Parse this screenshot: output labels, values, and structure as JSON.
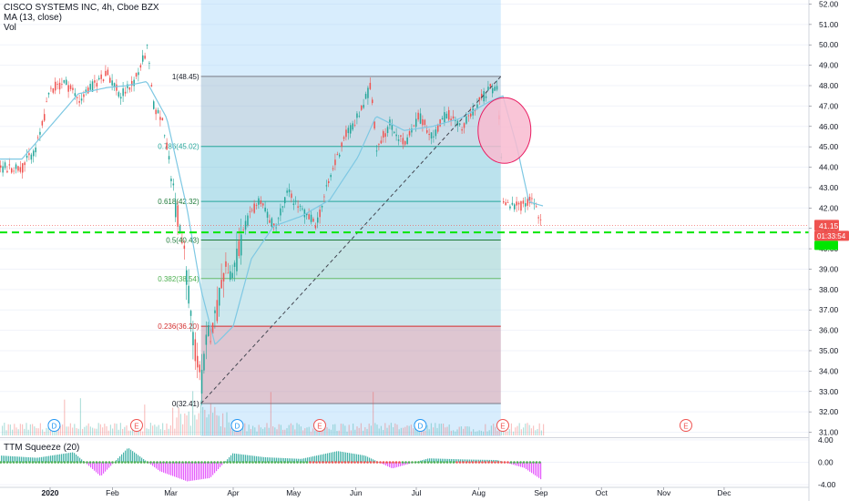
{
  "header": {
    "symbol": "CISCO SYSTEMS INC, 4h, Cboe BZX",
    "indicator_ma": "MA (13, close)",
    "indicator_vol": "Vol"
  },
  "oscillator": {
    "label": "TTM Squeeze (20)"
  },
  "colors": {
    "up": "#26a69a",
    "down": "#ef5350",
    "ma": "#7ec8e3",
    "fib_highlight_blue": "#90caf9",
    "dashed_support": "#00e600",
    "price_badge": "#ef5350",
    "squeeze_on": "#ef5350",
    "squeeze_off": "#4caf50",
    "momentum_up": "#26a69a",
    "momentum_down": "#e040fb",
    "circle_fill": "#f8bbd0"
  },
  "chart_data": {
    "type": "candlestick",
    "title": "CISCO SYSTEMS INC, 4h, Cboe BZX",
    "x_ticks": [
      "2020",
      "Feb",
      "Mar",
      "Apr",
      "May",
      "Jun",
      "Jul",
      "Aug",
      "Sep",
      "Oct",
      "Nov",
      "Dec"
    ],
    "y_ticks": [
      "52.00",
      "51.00",
      "50.00",
      "49.00",
      "48.00",
      "47.00",
      "46.00",
      "45.00",
      "44.00",
      "43.00",
      "42.00",
      "41.00",
      "40.00",
      "39.00",
      "38.00",
      "37.00",
      "36.00",
      "35.00",
      "34.00",
      "33.00",
      "32.00",
      "31.00"
    ],
    "ylim": [
      30.8,
      52.2
    ],
    "price_series": [
      [
        "2019-12-18",
        44.0
      ],
      [
        "2019-12-25",
        45.0
      ],
      [
        "2020-01-01",
        47.8
      ],
      [
        "2020-01-08",
        48.2
      ],
      [
        "2020-01-15",
        47.3
      ],
      [
        "2020-01-22",
        48.0
      ],
      [
        "2020-01-29",
        48.6
      ],
      [
        "2020-02-05",
        47.5
      ],
      [
        "2020-02-12",
        48.3
      ],
      [
        "2020-02-18",
        49.8
      ],
      [
        "2020-02-21",
        47.0
      ],
      [
        "2020-02-26",
        46.2
      ],
      [
        "2020-03-02",
        42.8
      ],
      [
        "2020-03-05",
        41.0
      ],
      [
        "2020-03-09",
        38.6
      ],
      [
        "2020-03-12",
        35.3
      ],
      [
        "2020-03-16",
        33.5
      ],
      [
        "2020-03-19",
        35.8
      ],
      [
        "2020-03-23",
        36.6
      ],
      [
        "2020-03-26",
        38.8
      ],
      [
        "2020-04-01",
        39.0
      ],
      [
        "2020-04-07",
        41.2
      ],
      [
        "2020-04-14",
        42.5
      ],
      [
        "2020-04-21",
        41.0
      ],
      [
        "2020-04-28",
        42.8
      ],
      [
        "2020-05-05",
        41.8
      ],
      [
        "2020-05-12",
        41.2
      ],
      [
        "2020-05-19",
        43.5
      ],
      [
        "2020-05-26",
        45.5
      ],
      [
        "2020-06-02",
        46.5
      ],
      [
        "2020-06-08",
        48.0
      ],
      [
        "2020-06-11",
        45.0
      ],
      [
        "2020-06-18",
        46.2
      ],
      [
        "2020-06-25",
        45.0
      ],
      [
        "2020-07-02",
        46.5
      ],
      [
        "2020-07-09",
        45.5
      ],
      [
        "2020-07-16",
        46.7
      ],
      [
        "2020-07-23",
        45.8
      ],
      [
        "2020-07-30",
        47.0
      ],
      [
        "2020-08-06",
        47.8
      ],
      [
        "2020-08-10",
        48.0
      ],
      [
        "2020-08-13",
        42.5
      ],
      [
        "2020-08-17",
        42.0
      ],
      [
        "2020-08-24",
        42.2
      ],
      [
        "2020-08-28",
        42.5
      ],
      [
        "2020-09-01",
        41.15
      ]
    ],
    "ma_series": [
      [
        "2019-12-18",
        44.4
      ],
      [
        "2020-01-01",
        46.0
      ],
      [
        "2020-01-15",
        47.6
      ],
      [
        "2020-01-29",
        47.9
      ],
      [
        "2020-02-08",
        48.0
      ],
      [
        "2020-02-18",
        48.2
      ],
      [
        "2020-02-28",
        46.4
      ],
      [
        "2020-03-09",
        42.0
      ],
      [
        "2020-03-16",
        38.0
      ],
      [
        "2020-03-23",
        35.3
      ],
      [
        "2020-04-01",
        36.2
      ],
      [
        "2020-04-10",
        39.5
      ],
      [
        "2020-04-21",
        41.1
      ],
      [
        "2020-05-05",
        41.6
      ],
      [
        "2020-05-19",
        42.4
      ],
      [
        "2020-06-02",
        44.5
      ],
      [
        "2020-06-11",
        46.5
      ],
      [
        "2020-06-25",
        45.8
      ],
      [
        "2020-07-09",
        46.0
      ],
      [
        "2020-07-23",
        46.4
      ],
      [
        "2020-08-06",
        47.2
      ],
      [
        "2020-08-13",
        47.5
      ],
      [
        "2020-08-20",
        45.0
      ],
      [
        "2020-08-26",
        42.3
      ],
      [
        "2020-09-02",
        42.1
      ]
    ],
    "fibonacci": {
      "from_date": "2020-03-16",
      "to_date": "2020-08-12",
      "levels": [
        {
          "label": "1(48.45)",
          "ratio": 1,
          "price": 48.45
        },
        {
          "label": "0.786(45.02)",
          "ratio": 0.786,
          "price": 45.02
        },
        {
          "label": "0.618(42.32)",
          "ratio": 0.618,
          "price": 42.32
        },
        {
          "label": "0.5(40.43)",
          "ratio": 0.5,
          "price": 40.43
        },
        {
          "label": "0.382(38.54)",
          "ratio": 0.382,
          "price": 38.54
        },
        {
          "label": "0.236(36.20)",
          "ratio": 0.236,
          "price": 36.2
        },
        {
          "label": "0(32.41)",
          "ratio": 0,
          "price": 32.41
        }
      ]
    },
    "highlight_range": {
      "from_date": "2020-03-16",
      "to_date": "2020-08-12"
    },
    "trendline": {
      "from": [
        "2020-03-16",
        32.41
      ],
      "to": [
        "2020-08-12",
        48.45
      ]
    },
    "support_line": 40.8,
    "highlight_circle": {
      "date": "2020-08-12",
      "price": 45.8
    },
    "last_price": "41.15",
    "countdown": "01:33:54",
    "events": [
      {
        "date": "2020-01-03",
        "label": "D",
        "kind": "dividend"
      },
      {
        "date": "2020-02-13",
        "label": "E",
        "kind": "earnings"
      },
      {
        "date": "2020-04-03",
        "label": "D",
        "kind": "dividend"
      },
      {
        "date": "2020-05-14",
        "label": "E",
        "kind": "earnings"
      },
      {
        "date": "2020-07-03",
        "label": "D",
        "kind": "dividend"
      },
      {
        "date": "2020-08-13",
        "label": "E",
        "kind": "earnings"
      },
      {
        "date": "2020-11-12",
        "label": "E",
        "kind": "earnings"
      }
    ],
    "oscillator": {
      "name": "TTM Squeeze (20)",
      "y_ticks": [
        "4.00",
        "0.00",
        "-4.00"
      ],
      "ylim": [
        -4.3,
        4.3
      ]
    }
  }
}
